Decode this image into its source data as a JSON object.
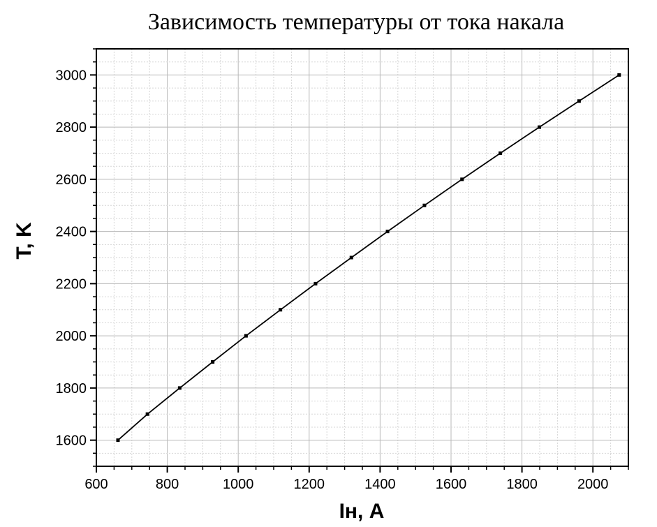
{
  "chart_data": {
    "type": "line",
    "title": "Зависимость температуры от тока накала",
    "xlabel": "Iн, A",
    "ylabel": "T, K",
    "xlim": [
      600,
      2100
    ],
    "ylim": [
      1500,
      3100
    ],
    "xticks": [
      "600",
      "800",
      "1000",
      "1200",
      "1400",
      "1600",
      "1800",
      "2000"
    ],
    "yticks": [
      "1600",
      "1800",
      "2000",
      "2200",
      "2400",
      "2600",
      "2800",
      "3000"
    ],
    "grid": true,
    "series": [
      {
        "x": [
          661,
          744,
          835,
          928,
          1022,
          1119,
          1218,
          1319,
          1421,
          1525,
          1631,
          1739,
          1849,
          1961,
          2074
        ],
        "y": [
          1600,
          1700,
          1800,
          1900,
          2000,
          2100,
          2200,
          2300,
          2400,
          2500,
          2600,
          2700,
          2800,
          2900,
          3000
        ]
      }
    ]
  }
}
